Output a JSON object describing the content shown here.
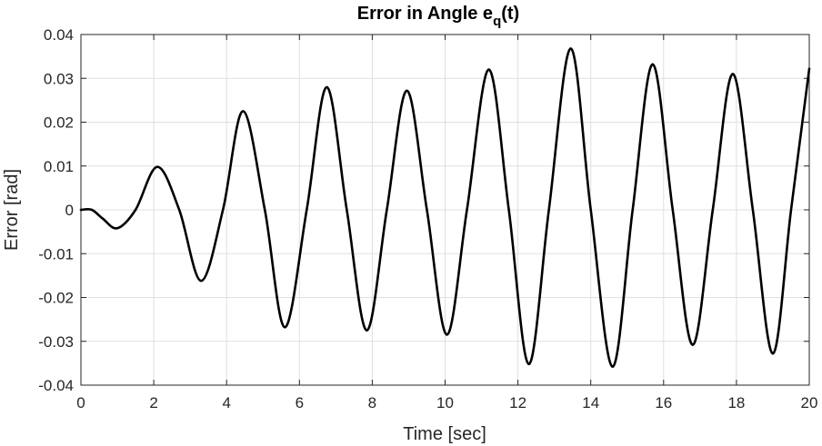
{
  "chart_data": {
    "type": "line",
    "title_main": "Error in Angle e",
    "title_sub": "q",
    "title_tail": "(t)",
    "xlabel": "Time [sec]",
    "ylabel": "Error [rad]",
    "xlim": [
      0,
      20
    ],
    "ylim": [
      -0.04,
      0.04
    ],
    "xticks": [
      0,
      2,
      4,
      6,
      8,
      10,
      12,
      14,
      16,
      18,
      20
    ],
    "yticks": [
      -0.04,
      -0.03,
      -0.02,
      -0.01,
      0,
      0.01,
      0.02,
      0.03,
      0.04
    ],
    "xtick_labels": [
      "0",
      "2",
      "4",
      "6",
      "8",
      "10",
      "12",
      "14",
      "16",
      "18",
      "20"
    ],
    "ytick_labels": [
      "-0.04",
      "-0.03",
      "-0.02",
      "-0.01",
      "0",
      "0.01",
      "0.02",
      "0.03",
      "0.04"
    ],
    "grid": true,
    "line_color": "#000000",
    "series": [
      {
        "points": [
          [
            0,
            0
          ],
          [
            0.3,
            0.0
          ],
          [
            0.6,
            -0.002
          ],
          [
            1.0,
            -0.0042
          ],
          [
            1.5,
            0.0
          ],
          [
            2.1,
            0.0098
          ],
          [
            2.7,
            0.0
          ],
          [
            3.3,
            -0.0162
          ],
          [
            3.9,
            0.0
          ],
          [
            4.45,
            0.0225
          ],
          [
            5.05,
            0.0
          ],
          [
            5.6,
            -0.0268
          ],
          [
            6.2,
            0.0
          ],
          [
            6.75,
            0.028
          ],
          [
            7.3,
            0.0
          ],
          [
            7.85,
            -0.0275
          ],
          [
            8.4,
            0.0
          ],
          [
            8.95,
            0.0272
          ],
          [
            9.5,
            0.0
          ],
          [
            10.05,
            -0.0285
          ],
          [
            10.6,
            0.0
          ],
          [
            11.2,
            0.032
          ],
          [
            11.75,
            0.0
          ],
          [
            12.3,
            -0.0352
          ],
          [
            12.85,
            0.0
          ],
          [
            13.45,
            0.0368
          ],
          [
            14.0,
            0.0
          ],
          [
            14.6,
            -0.0358
          ],
          [
            15.15,
            0.0
          ],
          [
            15.7,
            0.0332
          ],
          [
            16.25,
            0.0
          ],
          [
            16.8,
            -0.0308
          ],
          [
            17.35,
            0.0
          ],
          [
            17.9,
            0.031
          ],
          [
            18.45,
            0.0
          ],
          [
            19.0,
            -0.0328
          ],
          [
            19.5,
            0.0
          ],
          [
            20.0,
            0.0322
          ]
        ]
      }
    ]
  }
}
